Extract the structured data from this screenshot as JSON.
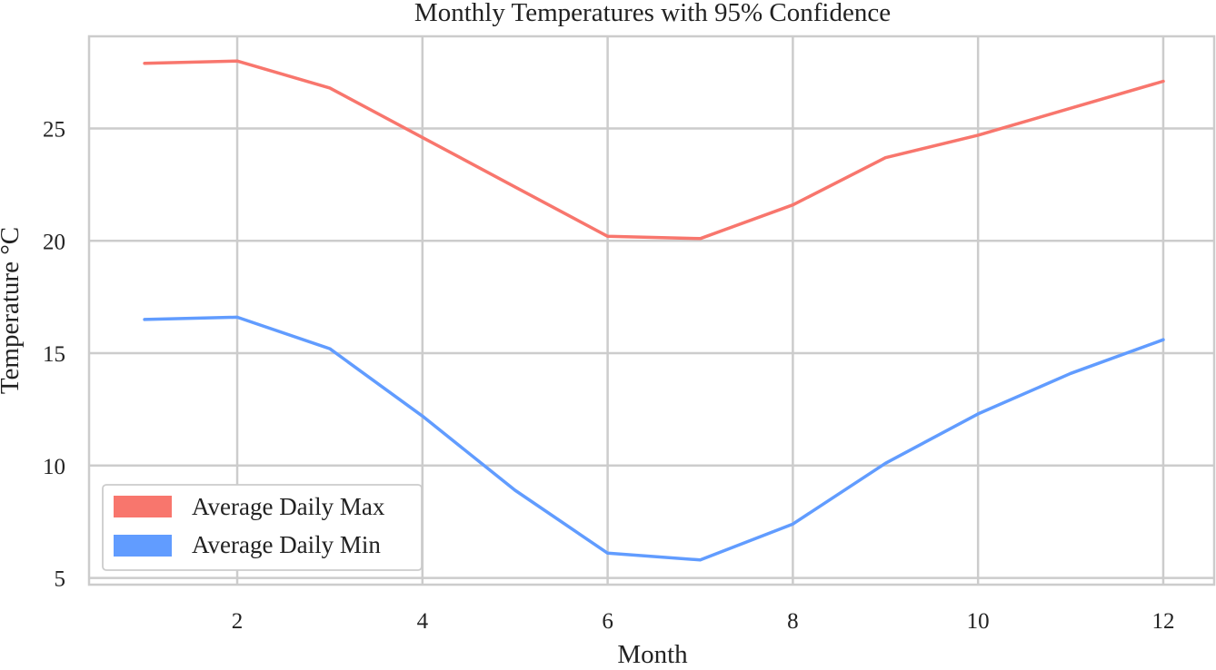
{
  "chart_data": {
    "type": "line",
    "title": "Monthly Temperatures with 95% Confidence",
    "xlabel": "Month",
    "ylabel": "Temperature °C",
    "x": [
      1,
      2,
      3,
      4,
      5,
      6,
      7,
      8,
      9,
      10,
      11,
      12
    ],
    "xlim": [
      0.4,
      12.55
    ],
    "ylim": [
      4.7,
      29.1
    ],
    "xticks": [
      2,
      4,
      6,
      8,
      10,
      12
    ],
    "xtick_labels": [
      "2",
      "4",
      "6",
      "8",
      "10",
      "12"
    ],
    "yticks": [
      5,
      10,
      15,
      20,
      25
    ],
    "ytick_labels": [
      "5",
      "10",
      "15",
      "20",
      "25"
    ],
    "grid": true,
    "legend_position": "lower-left",
    "series": [
      {
        "name": "Average Daily Max",
        "color": "#f8766d",
        "values": [
          27.9,
          28.0,
          26.8,
          24.6,
          22.4,
          20.2,
          20.1,
          21.6,
          23.7,
          24.7,
          25.9,
          27.1
        ]
      },
      {
        "name": "Average Daily Min",
        "color": "#619cff",
        "values": [
          16.5,
          16.6,
          15.2,
          12.2,
          8.9,
          6.1,
          5.8,
          7.4,
          10.1,
          12.3,
          14.1,
          15.6
        ]
      }
    ]
  }
}
